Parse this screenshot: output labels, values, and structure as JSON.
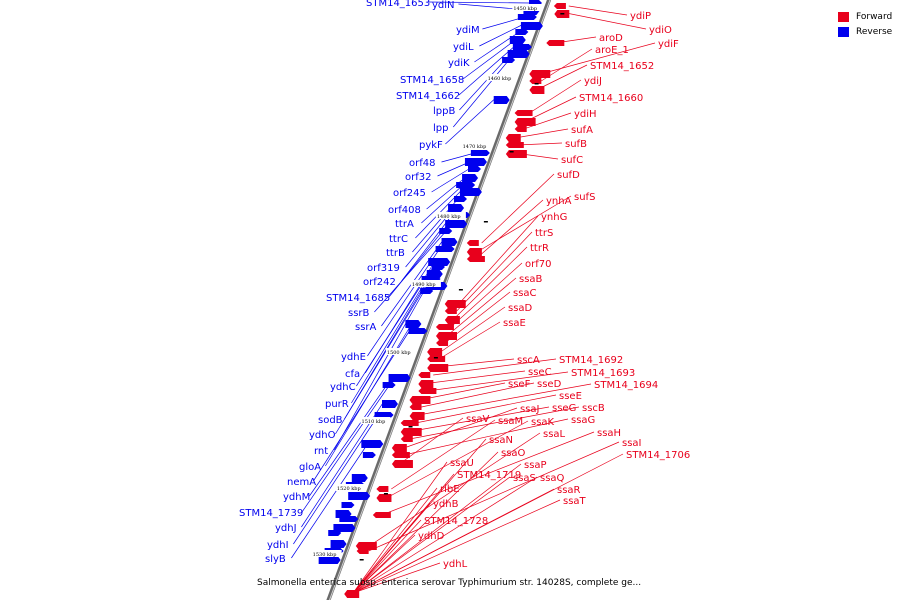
{
  "legend": {
    "forward": {
      "label": "Forward",
      "color": "#e8001c"
    },
    "reverse": {
      "label": "Reverse",
      "color": "#0000ee"
    }
  },
  "caption": "Salmonella enterica subsp. enterica serovar Typhimurium str. 14028S, complete ge...",
  "ticks": [
    "1450 kbp",
    "1460 kbp",
    "1470 kbp",
    "1480 kbp",
    "1490 kbp",
    "1500 kbp",
    "1510 kbp",
    "1520 kbp",
    "1530 kbp"
  ],
  "reverse_genes": [
    "STM14_1653",
    "ydiN",
    "ydiM",
    "ydiL",
    "ydiK",
    "STM14_1658",
    "STM14_1662",
    "lppB",
    "lpp",
    "pykF",
    "orf48",
    "orf32",
    "orf245",
    "orf408",
    "ttrA",
    "ttrC",
    "ttrB",
    "orf319",
    "orf242",
    "STM14_1685",
    "ssrB",
    "ssrA",
    "ydhE",
    "cfa",
    "ydhC",
    "purR",
    "sodB",
    "ydhO",
    "rnt",
    "gloA",
    "nemA",
    "ydhM",
    "STM14_1739",
    "ydhJ",
    "ydhI",
    "slyB"
  ],
  "forward_genes": [
    "ydiP",
    "ydiO",
    "aroD",
    "ydiF",
    "aroE_1",
    "STM14_1652",
    "ydiJ",
    "STM14_1660",
    "ydiH",
    "sufA",
    "sufB",
    "sufC",
    "sufD",
    "sufS",
    "ynhA",
    "ynhG",
    "ttrS",
    "ttrR",
    "orf70",
    "ssaB",
    "ssaC",
    "ssaD",
    "ssaE",
    "sscA",
    "STM14_1692",
    "sseC",
    "STM14_1693",
    "sseF",
    "sseD",
    "STM14_1694",
    "sseE",
    "sseG",
    "sscB",
    "ssaJ",
    "ssaG",
    "ssaV",
    "ssaM",
    "ssaK",
    "ssaH",
    "ssaL",
    "ssaI",
    "ssaN",
    "STM14_1706",
    "ssaO",
    "ssaU",
    "ssaP",
    "STM14_1719",
    "ssaS",
    "ssaQ",
    "ribE",
    "ssaR",
    "ssaT",
    "ydhB",
    "STM14_1728",
    "ydhD",
    "ydhL"
  ]
}
